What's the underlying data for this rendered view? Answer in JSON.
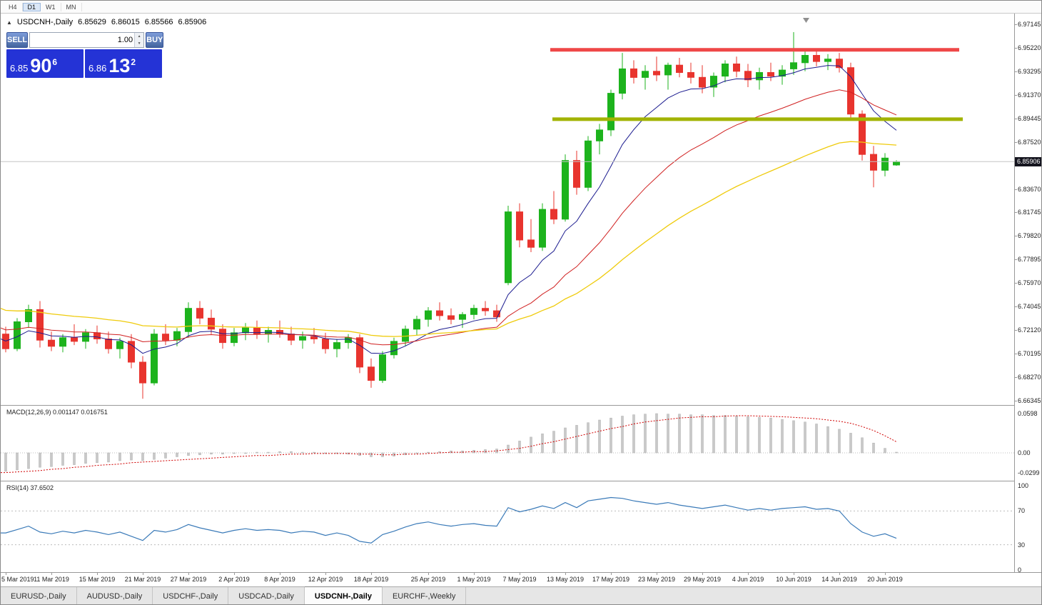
{
  "toolbar": {
    "timeframes": [
      {
        "label": "H4",
        "active": false
      },
      {
        "label": "D1",
        "active": true
      },
      {
        "label": "W1",
        "active": false
      },
      {
        "label": "MN",
        "active": false
      }
    ]
  },
  "chart_header": {
    "title": "USDCNH-,Daily",
    "open": "6.85629",
    "high": "6.86015",
    "low": "6.85566",
    "close": "6.85906"
  },
  "trade_panel": {
    "sell_label": "SELL",
    "buy_label": "BUY",
    "volume": "1.00",
    "sell_price": {
      "whole": "6.85",
      "pips": "90",
      "point": "6"
    },
    "buy_price": {
      "whole": "6.86",
      "pips": "13",
      "point": "2"
    },
    "box_color": "#2433d6",
    "button_gradient": [
      "#7d9cd9",
      "#44659f"
    ]
  },
  "price_axis": {
    "labels": [
      "6.97145",
      "6.95220",
      "6.93295",
      "6.91370",
      "6.89445",
      "6.87520",
      "6.83670",
      "6.81745",
      "6.79820",
      "6.77895",
      "6.75970",
      "6.74045",
      "6.72120",
      "6.70195",
      "6.68270",
      "6.66345"
    ],
    "grid_step": "0.01925",
    "current_price": "6.85906"
  },
  "indicators": {
    "macd": {
      "label": "MACD(12,26,9) 0.001147 0.016751",
      "axis_labels": [
        "0.0598",
        "0.00",
        "-0.0299"
      ],
      "axis_values": [
        0.0598,
        0.0,
        -0.0299
      ]
    },
    "rsi": {
      "label": "RSI(14) 37.6502",
      "axis_labels": [
        "100",
        "70",
        "30",
        "0"
      ],
      "axis_values": [
        100,
        70,
        30,
        0
      ],
      "levels": [
        70,
        30
      ]
    }
  },
  "date_axis": {
    "labels": [
      {
        "label": "5 Mar 2019",
        "index": 0
      },
      {
        "label": "11 Mar 2019",
        "index": 4
      },
      {
        "label": "15 Mar 2019",
        "index": 8
      },
      {
        "label": "21 Mar 2019",
        "index": 12
      },
      {
        "label": "27 Mar 2019",
        "index": 16
      },
      {
        "label": "2 Apr 2019",
        "index": 20
      },
      {
        "label": "8 Apr 2019",
        "index": 24
      },
      {
        "label": "12 Apr 2019",
        "index": 28
      },
      {
        "label": "18 Apr 2019",
        "index": 32
      },
      {
        "label": "25 Apr 2019",
        "index": 37
      },
      {
        "label": "1 May 2019",
        "index": 41
      },
      {
        "label": "7 May 2019",
        "index": 45
      },
      {
        "label": "13 May 2019",
        "index": 49
      },
      {
        "label": "17 May 2019",
        "index": 53
      },
      {
        "label": "23 May 2019",
        "index": 57
      },
      {
        "label": "29 May 2019",
        "index": 61
      },
      {
        "label": "4 Jun 2019",
        "index": 65
      },
      {
        "label": "10 Jun 2019",
        "index": 69
      },
      {
        "label": "14 Jun 2019",
        "index": 73
      },
      {
        "label": "20 Jun 2019",
        "index": 77
      }
    ]
  },
  "tabs": [
    {
      "label": "EURUSD-,Daily",
      "active": false
    },
    {
      "label": "AUDUSD-,Daily",
      "active": false
    },
    {
      "label": "USDCHF-,Daily",
      "active": false
    },
    {
      "label": "USDCAD-,Daily",
      "active": false
    },
    {
      "label": "USDCNH-,Daily",
      "active": true
    },
    {
      "label": "EURCHF-,Weekly",
      "active": false
    }
  ],
  "chart_data": {
    "type": "candlestick",
    "symbol": "USDCNH",
    "timeframe": "Daily",
    "colors": {
      "up": "#1db31d",
      "down": "#e8342e"
    },
    "candles": {
      "columns": [
        "date",
        "open",
        "high",
        "low",
        "close"
      ],
      "rows": [
        [
          "2019-03-05",
          6.718,
          6.724,
          6.703,
          6.706
        ],
        [
          "2019-03-06",
          6.706,
          6.731,
          6.704,
          6.728
        ],
        [
          "2019-03-07",
          6.728,
          6.742,
          6.723,
          6.738
        ],
        [
          "2019-03-08",
          6.738,
          6.745,
          6.707,
          6.713
        ],
        [
          "2019-03-11",
          6.713,
          6.72,
          6.704,
          6.708
        ],
        [
          "2019-03-12",
          6.708,
          6.718,
          6.703,
          6.715
        ],
        [
          "2019-03-13",
          6.715,
          6.726,
          6.709,
          6.712
        ],
        [
          "2019-03-14",
          6.712,
          6.722,
          6.706,
          6.719
        ],
        [
          "2019-03-15",
          6.719,
          6.725,
          6.71,
          6.714
        ],
        [
          "2019-03-18",
          6.714,
          6.72,
          6.702,
          6.706
        ],
        [
          "2019-03-19",
          6.706,
          6.715,
          6.698,
          6.712
        ],
        [
          "2019-03-20",
          6.712,
          6.718,
          6.69,
          6.695
        ],
        [
          "2019-03-21",
          6.695,
          6.7,
          6.665,
          6.678
        ],
        [
          "2019-03-22",
          6.678,
          6.722,
          6.676,
          6.718
        ],
        [
          "2019-03-25",
          6.718,
          6.726,
          6.709,
          6.713
        ],
        [
          "2019-03-26",
          6.713,
          6.723,
          6.708,
          6.72
        ],
        [
          "2019-03-27",
          6.72,
          6.744,
          6.715,
          6.739
        ],
        [
          "2019-03-28",
          6.739,
          6.745,
          6.726,
          6.731
        ],
        [
          "2019-03-29",
          6.731,
          6.738,
          6.718,
          6.722
        ],
        [
          "2019-04-01",
          6.722,
          6.726,
          6.706,
          6.711
        ],
        [
          "2019-04-02",
          6.711,
          6.723,
          6.708,
          6.719
        ],
        [
          "2019-04-03",
          6.719,
          6.727,
          6.713,
          6.723
        ],
        [
          "2019-04-04",
          6.723,
          6.729,
          6.714,
          6.718
        ],
        [
          "2019-04-05",
          6.718,
          6.724,
          6.711,
          6.721
        ],
        [
          "2019-04-08",
          6.721,
          6.729,
          6.715,
          6.718
        ],
        [
          "2019-04-09",
          6.718,
          6.724,
          6.709,
          6.713
        ],
        [
          "2019-04-10",
          6.713,
          6.72,
          6.706,
          6.716
        ],
        [
          "2019-04-11",
          6.716,
          6.723,
          6.71,
          6.714
        ],
        [
          "2019-04-12",
          6.714,
          6.719,
          6.702,
          6.706
        ],
        [
          "2019-04-15",
          6.706,
          6.714,
          6.699,
          6.711
        ],
        [
          "2019-04-16",
          6.711,
          6.718,
          6.706,
          6.715
        ],
        [
          "2019-04-17",
          6.715,
          6.718,
          6.686,
          6.691
        ],
        [
          "2019-04-18",
          6.691,
          6.698,
          6.674,
          6.68
        ],
        [
          "2019-04-19",
          6.68,
          6.704,
          6.678,
          6.701
        ],
        [
          "2019-04-22",
          6.701,
          6.715,
          6.698,
          6.712
        ],
        [
          "2019-04-23",
          6.712,
          6.725,
          6.708,
          6.722
        ],
        [
          "2019-04-24",
          6.722,
          6.733,
          6.717,
          6.73
        ],
        [
          "2019-04-25",
          6.73,
          6.74,
          6.724,
          6.737
        ],
        [
          "2019-04-26",
          6.737,
          6.744,
          6.729,
          6.733
        ],
        [
          "2019-04-29",
          6.733,
          6.739,
          6.726,
          6.73
        ],
        [
          "2019-04-30",
          6.73,
          6.736,
          6.723,
          6.734
        ],
        [
          "2019-05-01",
          6.734,
          6.742,
          6.73,
          6.739
        ],
        [
          "2019-05-02",
          6.739,
          6.745,
          6.733,
          6.737
        ],
        [
          "2019-05-03",
          6.737,
          6.742,
          6.728,
          6.732
        ],
        [
          "2019-05-06",
          6.76,
          6.823,
          6.758,
          6.818
        ],
        [
          "2019-05-07",
          6.818,
          6.825,
          6.789,
          6.795
        ],
        [
          "2019-05-08",
          6.795,
          6.812,
          6.785,
          6.789
        ],
        [
          "2019-05-09",
          6.789,
          6.825,
          6.786,
          6.82
        ],
        [
          "2019-05-10",
          6.82,
          6.835,
          6.808,
          6.812
        ],
        [
          "2019-05-13",
          6.812,
          6.865,
          6.81,
          6.86
        ],
        [
          "2019-05-14",
          6.86,
          6.868,
          6.832,
          6.838
        ],
        [
          "2019-05-15",
          6.838,
          6.88,
          6.835,
          6.876
        ],
        [
          "2019-05-16",
          6.876,
          6.89,
          6.865,
          6.885
        ],
        [
          "2019-05-17",
          6.885,
          6.918,
          6.88,
          6.915
        ],
        [
          "2019-05-20",
          6.915,
          6.948,
          6.91,
          6.935
        ],
        [
          "2019-05-21",
          6.935,
          6.942,
          6.923,
          6.928
        ],
        [
          "2019-05-22",
          6.928,
          6.938,
          6.918,
          6.933
        ],
        [
          "2019-05-23",
          6.933,
          6.945,
          6.925,
          6.93
        ],
        [
          "2019-05-24",
          6.93,
          6.94,
          6.918,
          6.938
        ],
        [
          "2019-05-27",
          6.938,
          6.944,
          6.928,
          6.932
        ],
        [
          "2019-05-28",
          6.932,
          6.94,
          6.923,
          6.928
        ],
        [
          "2019-05-29",
          6.928,
          6.938,
          6.915,
          6.92
        ],
        [
          "2019-05-30",
          6.92,
          6.932,
          6.912,
          6.929
        ],
        [
          "2019-05-31",
          6.929,
          6.942,
          6.924,
          6.939
        ],
        [
          "2019-06-03",
          6.939,
          6.945,
          6.928,
          6.933
        ],
        [
          "2019-06-04",
          6.933,
          6.939,
          6.92,
          6.926
        ],
        [
          "2019-06-05",
          6.926,
          6.936,
          6.918,
          6.932
        ],
        [
          "2019-06-06",
          6.932,
          6.94,
          6.925,
          6.929
        ],
        [
          "2019-06-07",
          6.929,
          6.938,
          6.922,
          6.934
        ],
        [
          "2019-06-10",
          6.935,
          6.965,
          6.93,
          6.94
        ],
        [
          "2019-06-11",
          6.94,
          6.95,
          6.933,
          6.946
        ],
        [
          "2019-06-12",
          6.946,
          6.951,
          6.937,
          6.941
        ],
        [
          "2019-06-13",
          6.941,
          6.947,
          6.934,
          6.943
        ],
        [
          "2019-06-14",
          6.943,
          6.948,
          6.932,
          6.936
        ],
        [
          "2019-06-17",
          6.936,
          6.94,
          6.895,
          6.898
        ],
        [
          "2019-06-18",
          6.898,
          6.901,
          6.86,
          6.865
        ],
        [
          "2019-06-19",
          6.865,
          6.872,
          6.838,
          6.852
        ],
        [
          "2019-06-20",
          6.852,
          6.866,
          6.847,
          6.862
        ],
        [
          "2019-06-21",
          6.85629,
          6.86015,
          6.85566,
          6.85906
        ]
      ]
    },
    "moving_averages": [
      {
        "period": 8,
        "color": "#1b1b8f",
        "width": 1,
        "start": 6.714
      },
      {
        "period": 20,
        "color": "#d02020",
        "width": 1,
        "start": 6.723
      },
      {
        "period": 40,
        "color": "#efcb0c",
        "width": 1.3,
        "start": 6.739
      }
    ],
    "overlay_lines": [
      {
        "name": "resistance",
        "price": 6.9505,
        "color": "#ef4747",
        "width": 5,
        "from_index": 47.7,
        "to_index": 83.5
      },
      {
        "name": "support",
        "price": 6.8938,
        "color": "#a2b300",
        "width": 5,
        "from_index": 47.9,
        "to_index": 83.8
      }
    ],
    "macd": {
      "bar_color": "#c9c9c9",
      "signal_color": "#d00000",
      "histogram": [
        -0.028,
        -0.026,
        -0.024,
        -0.022,
        -0.021,
        -0.019,
        -0.018,
        -0.016,
        -0.015,
        -0.014,
        -0.012,
        -0.011,
        -0.012,
        -0.01,
        -0.008,
        -0.006,
        -0.004,
        -0.003,
        -0.002,
        -0.002,
        -0.001,
        0.0,
        0.001,
        0.001,
        0.002,
        0.002,
        0.001,
        0.001,
        0.0,
        -0.001,
        -0.002,
        -0.004,
        -0.006,
        -0.006,
        -0.005,
        -0.003,
        -0.001,
        0.001,
        0.002,
        0.003,
        0.003,
        0.004,
        0.005,
        0.006,
        0.012,
        0.018,
        0.024,
        0.029,
        0.033,
        0.038,
        0.042,
        0.046,
        0.05,
        0.053,
        0.056,
        0.058,
        0.059,
        0.0598,
        0.059,
        0.059,
        0.058,
        0.058,
        0.057,
        0.057,
        0.056,
        0.055,
        0.054,
        0.053,
        0.051,
        0.049,
        0.047,
        0.044,
        0.04,
        0.036,
        0.03,
        0.023,
        0.015,
        0.007,
        0.0011
      ],
      "signal": [
        -0.03,
        -0.029,
        -0.028,
        -0.027,
        -0.025,
        -0.024,
        -0.022,
        -0.021,
        -0.019,
        -0.018,
        -0.017,
        -0.015,
        -0.014,
        -0.013,
        -0.012,
        -0.011,
        -0.01,
        -0.009,
        -0.008,
        -0.007,
        -0.006,
        -0.005,
        -0.004,
        -0.004,
        -0.003,
        -0.002,
        -0.002,
        -0.001,
        -0.001,
        -0.001,
        -0.001,
        -0.002,
        -0.002,
        -0.003,
        -0.003,
        -0.002,
        -0.002,
        -0.001,
        0.0,
        0.001,
        0.001,
        0.002,
        0.002,
        0.003,
        0.005,
        0.007,
        0.01,
        0.014,
        0.017,
        0.021,
        0.025,
        0.029,
        0.033,
        0.037,
        0.04,
        0.044,
        0.047,
        0.049,
        0.051,
        0.053,
        0.054,
        0.055,
        0.055,
        0.056,
        0.0565,
        0.0565,
        0.056,
        0.0555,
        0.055,
        0.054,
        0.053,
        0.052,
        0.05,
        0.048,
        0.045,
        0.04,
        0.034,
        0.026,
        0.0168
      ]
    },
    "rsi": {
      "line_color": "#3a7ab8",
      "values": [
        44,
        48,
        52,
        45,
        43,
        46,
        44,
        47,
        45,
        42,
        45,
        40,
        35,
        47,
        45,
        48,
        54,
        50,
        47,
        44,
        47,
        49,
        47,
        48,
        47,
        44,
        46,
        45,
        41,
        44,
        41,
        34,
        32,
        42,
        46,
        51,
        55,
        57,
        54,
        52,
        54,
        55,
        53,
        52,
        74,
        69,
        72,
        76,
        73,
        80,
        74,
        82,
        84,
        86,
        85,
        82,
        80,
        78,
        80,
        77,
        75,
        73,
        75,
        77,
        74,
        71,
        73,
        71,
        73,
        74,
        75,
        72,
        73,
        70,
        55,
        45,
        40,
        43,
        37.65
      ]
    }
  }
}
